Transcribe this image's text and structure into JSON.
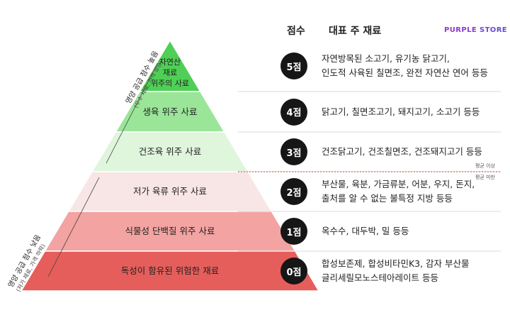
{
  "header": {
    "score_title": "점수",
    "ingredients_title": "대표 주 재료",
    "brand_main": "PURPLE",
    "brand_rest": " STORE"
  },
  "side_labels": {
    "upper_main": "영양 공급 점수 높음",
    "upper_sub": "(우수 재료, 가격 상승)",
    "lower_main": "영양 공급 점수 낮음",
    "lower_sub": "(저가 재료, 가격 하락)"
  },
  "tiers": [
    {
      "label_lines": [
        "자연산",
        "재료",
        "위주의 사료"
      ],
      "score": "5점",
      "ingredients": [
        "자연방목된 소고기, 유기농 닭고기,",
        "인도적 사육된 칠면조, 완전 자연산 연어 등등"
      ],
      "color": "#4fcf56"
    },
    {
      "label_lines": [
        "생육 위주 사료"
      ],
      "score": "4점",
      "ingredients": [
        "닭고기, 칠면조고기, 돼지고기, 소고기 등등"
      ],
      "color": "#9be599"
    },
    {
      "label_lines": [
        "건조육 위주 사료"
      ],
      "score": "3점",
      "ingredients": [
        "건조닭고기, 건조칠면조, 건조돼지고기 등등"
      ],
      "color": "#dff5dc"
    },
    {
      "label_lines": [
        "저가 육류 위주 사료"
      ],
      "score": "2점",
      "ingredients": [
        "부산물, 육분, 가금류분, 어분, 우지, 돈지,",
        "출처를 알 수 없는 불특정 지방 등등"
      ],
      "color": "#f7e6e5"
    },
    {
      "label_lines": [
        "식물성 단백질 위주 사료"
      ],
      "score": "1점",
      "ingredients": [
        "옥수수, 대두박, 밀 등등"
      ],
      "color": "#f3a3a1"
    },
    {
      "label_lines": [
        "독성이 함유된 위험한 재료"
      ],
      "score": "0점",
      "ingredients": [
        "합성보존제, 합성비타민K3, 감자 부산물",
        "글리세릴모노스테아레이트 등등"
      ],
      "color": "#e65e5b"
    }
  ],
  "average": {
    "above": "평균 이상",
    "below": "평균 미만",
    "line_color": "#d63a3a"
  }
}
